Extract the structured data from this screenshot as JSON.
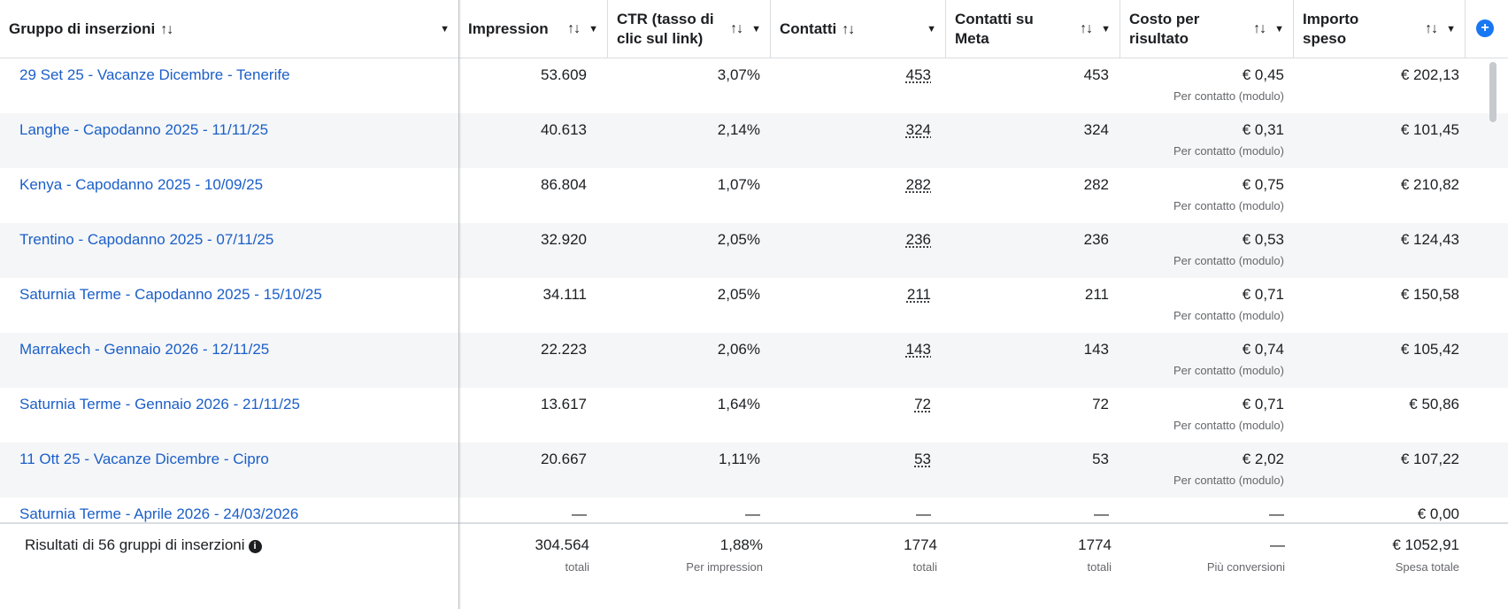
{
  "header": {
    "col_name": "Gruppo di inserzioni",
    "col_impressions": "Impression",
    "col_ctr_line1": "CTR (tasso di",
    "col_ctr_line2": "clic sul link)",
    "col_contacts": "Contatti",
    "col_meta_line1": "Contatti su",
    "col_meta_line2": "Meta",
    "col_cost_line1": "Costo per",
    "col_cost_line2": "risultato",
    "col_spent_line1": "Importo",
    "col_spent_line2": "speso",
    "sort_glyph": "↑↓",
    "caret_glyph": "▼",
    "add_glyph": "+"
  },
  "rows": [
    {
      "name": "29 Set 25 - Vacanze Dicembre - Tenerife",
      "impressions": "53.609",
      "ctr": "3,07%",
      "contacts": "453",
      "meta": "453",
      "cost": "€ 0,45",
      "cost_sub": "Per contatto (modulo)",
      "spent": "€ 202,13"
    },
    {
      "name": "Langhe - Capodanno 2025 - 11/11/25",
      "impressions": "40.613",
      "ctr": "2,14%",
      "contacts": "324",
      "meta": "324",
      "cost": "€ 0,31",
      "cost_sub": "Per contatto (modulo)",
      "spent": "€ 101,45"
    },
    {
      "name": "Kenya - Capodanno 2025 - 10/09/25",
      "impressions": "86.804",
      "ctr": "1,07%",
      "contacts": "282",
      "meta": "282",
      "cost": "€ 0,75",
      "cost_sub": "Per contatto (modulo)",
      "spent": "€ 210,82"
    },
    {
      "name": "Trentino - Capodanno 2025 - 07/11/25",
      "impressions": "32.920",
      "ctr": "2,05%",
      "contacts": "236",
      "meta": "236",
      "cost": "€ 0,53",
      "cost_sub": "Per contatto (modulo)",
      "spent": "€ 124,43"
    },
    {
      "name": "Saturnia Terme - Capodanno 2025 - 15/10/25",
      "impressions": "34.111",
      "ctr": "2,05%",
      "contacts": "211",
      "meta": "211",
      "cost": "€ 0,71",
      "cost_sub": "Per contatto (modulo)",
      "spent": "€ 150,58"
    },
    {
      "name": "Marrakech - Gennaio 2026 - 12/11/25",
      "impressions": "22.223",
      "ctr": "2,06%",
      "contacts": "143",
      "meta": "143",
      "cost": "€ 0,74",
      "cost_sub": "Per contatto (modulo)",
      "spent": "€ 105,42"
    },
    {
      "name": "Saturnia Terme - Gennaio 2026 - 21/11/25",
      "impressions": "13.617",
      "ctr": "1,64%",
      "contacts": "72",
      "meta": "72",
      "cost": "€ 0,71",
      "cost_sub": "Per contatto (modulo)",
      "spent": "€ 50,86"
    },
    {
      "name": "11 Ott 25 - Vacanze Dicembre - Cipro",
      "impressions": "20.667",
      "ctr": "1,11%",
      "contacts": "53",
      "meta": "53",
      "cost": "€ 2,02",
      "cost_sub": "Per contatto (modulo)",
      "spent": "€ 107,22"
    },
    {
      "name": "Saturnia Terme - Aprile 2026 - 24/03/2026",
      "impressions": "—",
      "ctr": "—",
      "contacts": "—",
      "meta": "—",
      "cost": "—",
      "cost_sub": "",
      "spent": "€ 0,00"
    }
  ],
  "footer": {
    "label": "Risultati di 56 gruppi di inserzioni",
    "info_glyph": "i",
    "impressions": "304.564",
    "impressions_sub": "totali",
    "ctr": "1,88%",
    "ctr_sub": "Per impression",
    "contacts": "1774",
    "contacts_sub": "totali",
    "meta": "1774",
    "meta_sub": "totali",
    "cost": "—",
    "cost_sub": "Più conversioni",
    "spent": "€ 1052,91",
    "spent_sub": "Spesa totale"
  }
}
